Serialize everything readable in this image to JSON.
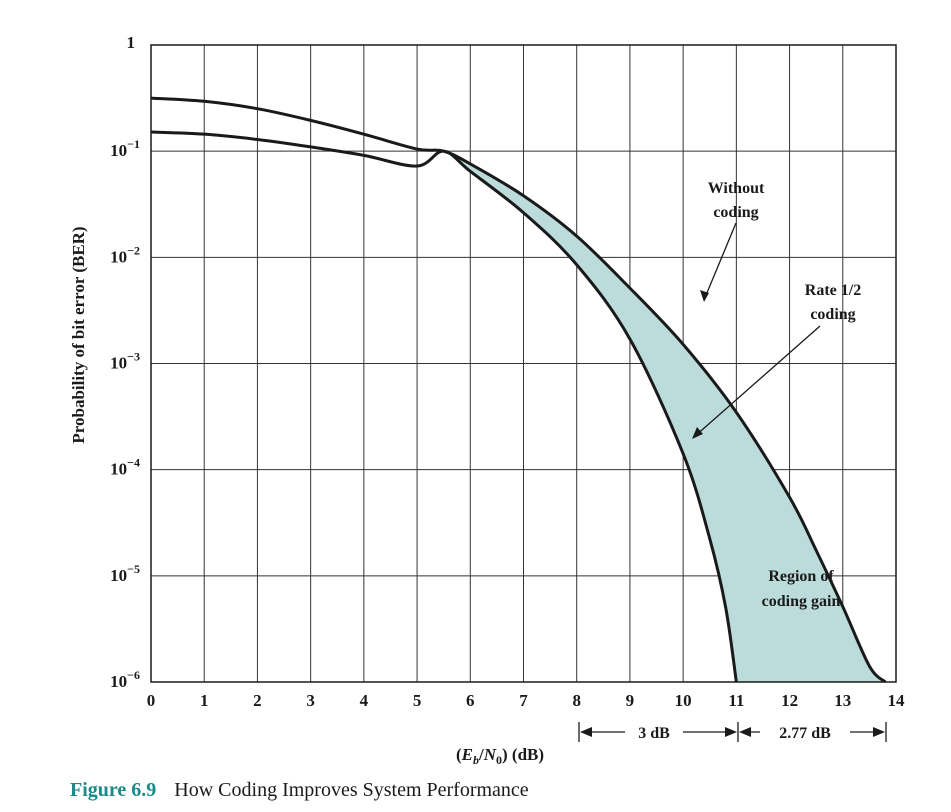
{
  "chart_data": {
    "type": "line",
    "xlabel_parts": {
      "open": "(",
      "E": "E",
      "b": "b",
      "slash": "/",
      "N": "N",
      "zero": "0",
      "close": ")",
      "unit": " (dB)"
    },
    "ylabel": "Probability of bit error (BER)",
    "xlim": [
      0,
      14
    ],
    "ylim_exponent": [
      -6,
      0
    ],
    "y_log_scale": true,
    "grid": true,
    "x_ticks": [
      "0",
      "1",
      "2",
      "3",
      "4",
      "5",
      "6",
      "7",
      "8",
      "9",
      "10",
      "11",
      "12",
      "13",
      "14"
    ],
    "y_ticks": [
      {
        "base": "1",
        "exp": ""
      },
      {
        "base": "10",
        "exp": "−1"
      },
      {
        "base": "10",
        "exp": "−2"
      },
      {
        "base": "10",
        "exp": "−3"
      },
      {
        "base": "10",
        "exp": "−4"
      },
      {
        "base": "10",
        "exp": "−5"
      },
      {
        "base": "10",
        "exp": "−6"
      }
    ],
    "series": [
      {
        "name": "Without coding",
        "x": [
          0,
          1,
          2,
          3,
          4,
          5,
          5.5,
          6,
          7,
          8,
          9,
          10,
          11,
          12,
          12.5,
          13,
          13.5,
          13.8
        ],
        "log10_y": [
          -0.5,
          -0.53,
          -0.6,
          -0.71,
          -0.84,
          -0.98,
          -1.0,
          -1.12,
          -1.42,
          -1.8,
          -2.29,
          -2.82,
          -3.46,
          -4.26,
          -4.76,
          -5.29,
          -5.85,
          -6
        ]
      },
      {
        "name": "Rate 1/2 coding",
        "x": [
          0,
          1,
          2,
          3,
          4,
          5,
          5.5,
          6,
          7,
          8,
          9,
          10,
          10.5,
          10.8,
          11
        ],
        "log10_y": [
          -0.82,
          -0.84,
          -0.89,
          -0.96,
          -1.04,
          -1.14,
          -1.0,
          -1.19,
          -1.58,
          -2.07,
          -2.77,
          -3.85,
          -4.65,
          -5.3,
          -6
        ]
      }
    ],
    "annotations": {
      "without_coding": [
        "Without",
        "coding"
      ],
      "rate_coding": [
        "Rate 1/2",
        "coding"
      ],
      "region": [
        "Region of",
        "coding gain"
      ],
      "gain_3db": "3 dB",
      "gain_277db": "2.77 dB"
    },
    "colors": {
      "region_fill": "#bcdcdc",
      "curve": "#1a1a1a",
      "grid": "#333333",
      "caption_number": "#1a8a8a"
    }
  },
  "caption": {
    "number": "Figure 6.9",
    "text": "How Coding Improves System Performance"
  }
}
